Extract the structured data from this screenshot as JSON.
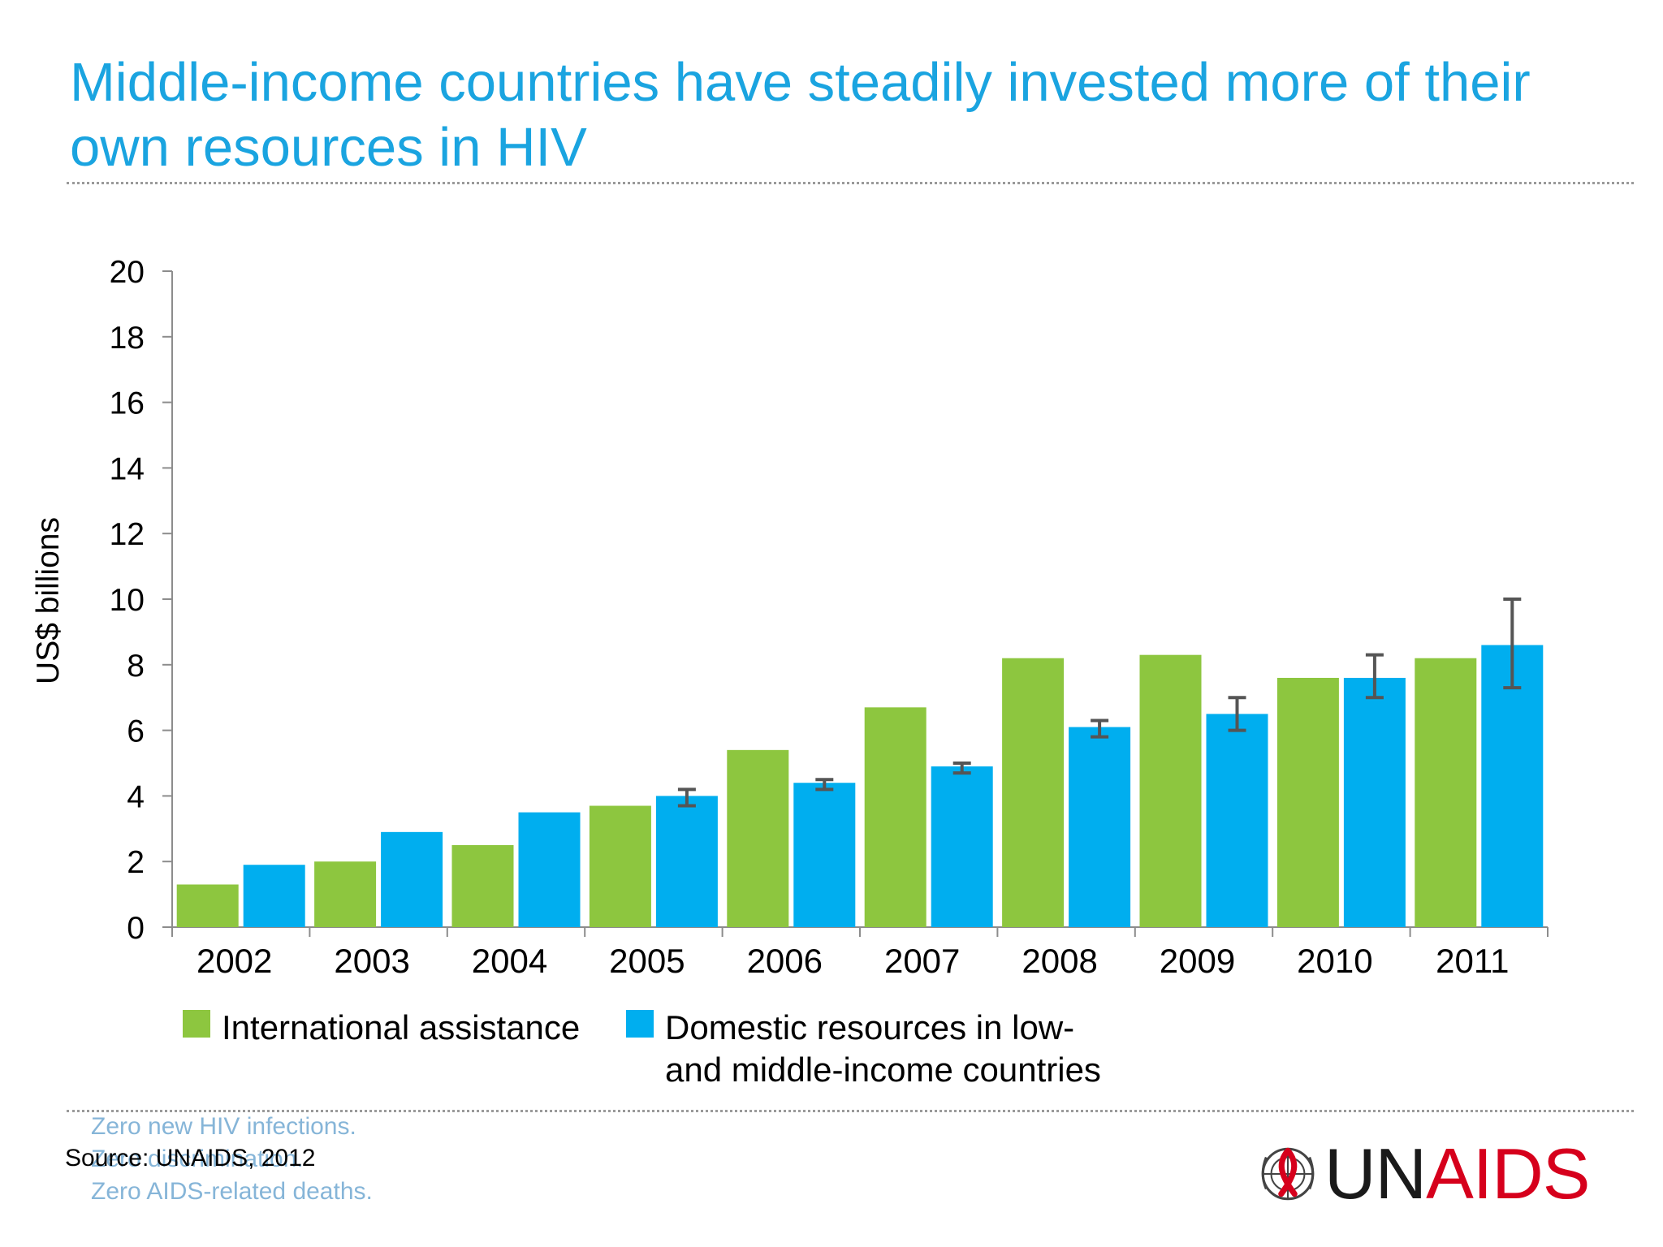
{
  "title": "Middle-income countries have steadily invested more of their own resources in HIV",
  "footer": {
    "tagline": "Zero new HIV infections.\nZero discrimination.\nZero AIDS-related deaths.",
    "source": "Source: UNAIDS, 2012",
    "logo_text_dark": "UN",
    "logo_text_red": "AIDS"
  },
  "chart_data": {
    "type": "bar",
    "ylabel": "US$ billions",
    "xlabel": "",
    "ylim": [
      0,
      20
    ],
    "yticks": [
      0,
      2,
      4,
      6,
      8,
      10,
      12,
      14,
      16,
      18,
      20
    ],
    "grid": false,
    "legend_position": "bottom",
    "categories": [
      "2002",
      "2003",
      "2004",
      "2005",
      "2006",
      "2007",
      "2008",
      "2009",
      "2010",
      "2011"
    ],
    "series": [
      {
        "name": "International assistance",
        "color": "#8dc63f",
        "values": [
          1.3,
          2.0,
          2.5,
          3.7,
          5.4,
          6.7,
          8.2,
          8.3,
          7.6,
          8.2
        ]
      },
      {
        "name": "Domestic resources in low-\nand middle-income countries",
        "color": "#00aeef",
        "values": [
          1.9,
          2.9,
          3.5,
          4.0,
          4.4,
          4.9,
          6.1,
          6.5,
          7.6,
          8.6
        ],
        "error": [
          null,
          null,
          null,
          [
            3.7,
            4.2
          ],
          [
            4.2,
            4.5
          ],
          [
            4.7,
            5.0
          ],
          [
            5.8,
            6.3
          ],
          [
            6.0,
            7.0
          ],
          [
            7.0,
            8.3
          ],
          [
            7.3,
            10.0
          ]
        ]
      }
    ],
    "error_color": "#555555"
  }
}
